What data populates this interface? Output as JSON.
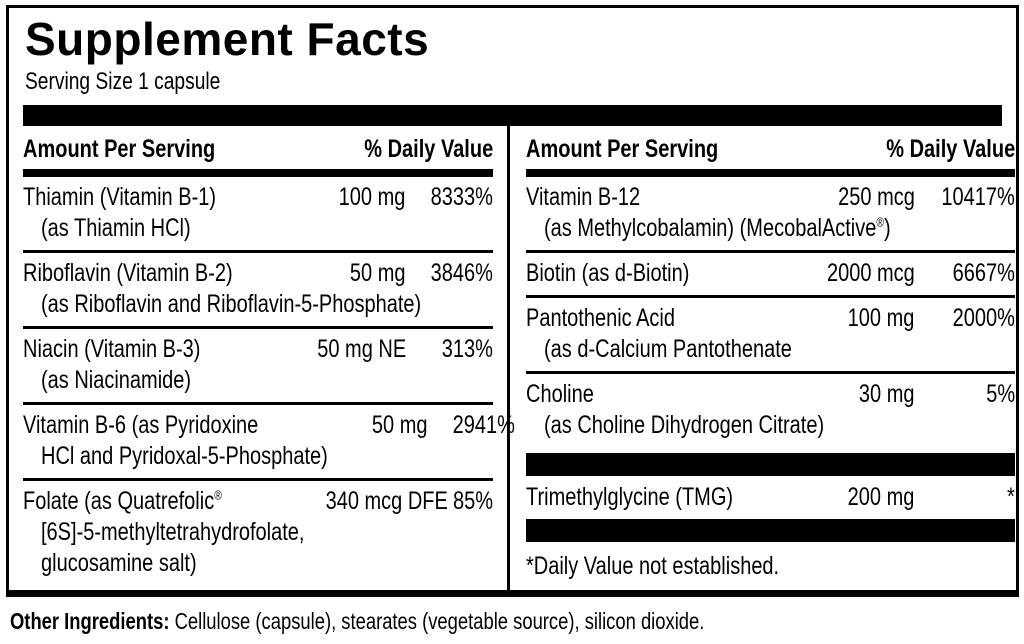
{
  "colors": {
    "text": "#000000",
    "background": "#ffffff",
    "bars": "#000000"
  },
  "title": "Supplement Facts",
  "serving": "Serving Size 1 capsule",
  "columns": {
    "left": {
      "header": {
        "amount": "Amount Per Serving",
        "dv": "% Daily Value"
      },
      "rows": [
        {
          "name": "Thiamin (Vitamin B-1)",
          "amount": "100 mg",
          "dv": "8333%",
          "sub": [
            "(as Thiamin HCl)"
          ]
        },
        {
          "name": "Riboflavin (Vitamin B-2)",
          "amount": "50 mg",
          "dv": "3846%",
          "sub": [
            "(as Riboflavin and Riboflavin-5-Phosphate)"
          ]
        },
        {
          "name": "Niacin (Vitamin B-3)",
          "amount": "50 mg NE",
          "dv": "313%",
          "sub": [
            "(as Niacinamide)"
          ]
        },
        {
          "name": "Vitamin B-6 (as Pyridoxine",
          "amount": "50 mg",
          "dv": "2941%",
          "sub": [
            "HCl and Pyridoxal-5-Phosphate)"
          ]
        },
        {
          "name_pre": "Folate (as Quatrefolic",
          "name_sup": "®",
          "amount": "340 mcg DFE",
          "dv": "85%",
          "sub": [
            "[6S]-5-methyltetrahydrofolate,",
            "glucosamine salt)"
          ]
        }
      ]
    },
    "right": {
      "header": {
        "amount": "Amount Per Serving",
        "dv": "% Daily Value"
      },
      "rows": [
        {
          "name": "Vitamin B-12",
          "amount": "250 mcg",
          "dv": "10417%",
          "sub_pre": "(as Methylcobalamin) (MecobalActive",
          "sub_sup": "®",
          "sub_post": ")"
        },
        {
          "name": "Biotin (as d-Biotin)",
          "amount": "2000 mcg",
          "dv": "6667%"
        },
        {
          "name": "Pantothenic Acid",
          "amount": "100 mg",
          "dv": "2000%",
          "sub": [
            "(as d-Calcium Pantothenate"
          ]
        },
        {
          "name": "Choline",
          "amount": "30 mg",
          "dv": "5%",
          "sub": [
            "(as Choline Dihydrogen Citrate)"
          ]
        },
        {
          "name": "Trimethylglycine (TMG)",
          "amount": "200 mg",
          "dv": "*"
        }
      ],
      "footnote": "*Daily Value not established."
    }
  },
  "other_ingredients": {
    "label": "Other Ingredients:",
    "text": " Cellulose (capsule), stearates (vegetable source), silicon dioxide."
  }
}
